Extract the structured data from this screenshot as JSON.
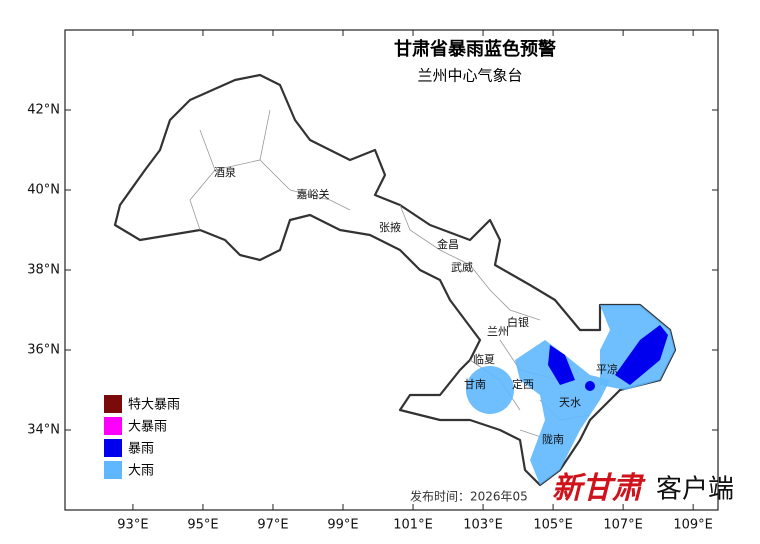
{
  "header": {
    "title": "甘肃省暴雨蓝色预警",
    "subtitle": "兰州中心气象台"
  },
  "map": {
    "lonlim": [
      91.06,
      109.71
    ],
    "latlim": [
      32,
      44
    ],
    "lon_ticks": [
      {
        "value": 93,
        "label": "93°E"
      },
      {
        "value": 95,
        "label": "95°E"
      },
      {
        "value": 97,
        "label": "97°E"
      },
      {
        "value": 99,
        "label": "99°E"
      },
      {
        "value": 101,
        "label": "101°E"
      },
      {
        "value": 103,
        "label": "103°E"
      },
      {
        "value": 105,
        "label": "105°E"
      },
      {
        "value": 107,
        "label": "107°E"
      },
      {
        "value": 109,
        "label": "109°E"
      }
    ],
    "lat_ticks": [
      {
        "value": 42,
        "label": "42°N"
      },
      {
        "value": 40,
        "label": "40°N"
      },
      {
        "value": 38,
        "label": "38°N"
      },
      {
        "value": 36,
        "label": "36°N"
      },
      {
        "value": 34,
        "label": "34°N"
      }
    ],
    "places": [
      "酒泉",
      "嘉峪关",
      "张掖",
      "金昌",
      "武威",
      "白银",
      "兰州",
      "临夏",
      "甘南",
      "定西",
      "天水",
      "平凉",
      "陇南"
    ]
  },
  "legend": [
    {
      "label": "特大暴雨",
      "color": "#7b0a0a"
    },
    {
      "label": "大暴雨",
      "color": "#ff00ff"
    },
    {
      "label": "暴雨",
      "color": "#0000ee"
    },
    {
      "label": "大雨",
      "color": "#5fb8ff"
    }
  ],
  "footer": {
    "issued": "发布时间：2026年05",
    "brand_red": "新甘肃",
    "brand_black": "客户端"
  }
}
